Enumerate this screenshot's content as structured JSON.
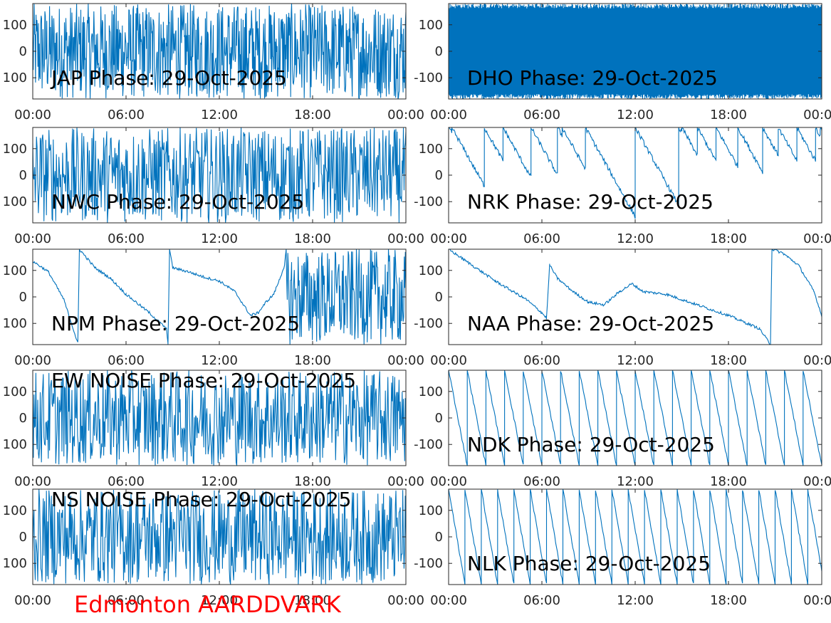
{
  "footer": {
    "text": "Edmonton AARDDVARK",
    "color": "#ff0000"
  },
  "colors": {
    "trace": "#0072bd",
    "axis": "#262626"
  },
  "chart_data": [
    {
      "type": "line",
      "title": "JAP Phase: 29-Oct-2025",
      "pattern": "noisy",
      "n_traces": 200,
      "x_ticks": [
        "00:00",
        "06:00",
        "12:00",
        "18:00",
        "00:00"
      ],
      "y_ticks": [
        "100",
        "0",
        "100"
      ],
      "ylim": [
        -180,
        180
      ],
      "xlim_hours": [
        0,
        24
      ]
    },
    {
      "type": "line",
      "title": "DHO Phase: 29-Oct-2025",
      "pattern": "dense",
      "n_traces": 260,
      "x_ticks": [
        "00:00",
        "06:00",
        "12:00",
        "18:00",
        "00:00"
      ],
      "y_ticks": [
        "100",
        "0",
        "-100"
      ],
      "ylim": [
        -180,
        180
      ],
      "xlim_hours": [
        0,
        24
      ]
    },
    {
      "type": "line",
      "title": "NWC Phase: 29-Oct-2025",
      "pattern": "noisy",
      "n_traces": 150,
      "x_ticks": [
        "00:00",
        "06:00",
        "12:00",
        "18:00",
        "00:00"
      ],
      "y_ticks": [
        "100",
        "0",
        "100"
      ],
      "ylim": [
        -180,
        180
      ],
      "xlim_hours": [
        0,
        24
      ]
    },
    {
      "type": "line",
      "title": "NRK Phase: 29-Oct-2025",
      "pattern": "drift",
      "x_ticks": [
        "00:00",
        "06:00",
        "12:00",
        "18:00",
        "00:00"
      ],
      "y_ticks": [
        "100",
        "0",
        "-100"
      ],
      "ylim": [
        -180,
        180
      ],
      "xlim_hours": [
        0,
        24
      ],
      "wraps_hours": [
        0.2,
        2.3,
        3.5,
        5.3,
        7.0,
        7.3,
        8.8,
        12.0,
        14.8,
        15.0,
        16.0,
        17.2,
        18.6,
        20.2,
        21.2,
        22.4,
        23.6,
        23.9
      ],
      "slope_deg_per_hour": -105
    },
    {
      "type": "line",
      "title": "NPM Phase: 29-Oct-2025",
      "pattern": "mixed",
      "x_ticks": [
        "00:00",
        "06:00",
        "12:00",
        "18:00",
        "00:00"
      ],
      "y_ticks": [
        "100",
        "0",
        "100"
      ],
      "ylim": [
        -180,
        180
      ],
      "xlim_hours": [
        0,
        24
      ],
      "points": [
        [
          0,
          135
        ],
        [
          1,
          95
        ],
        [
          2,
          -10
        ],
        [
          2.9,
          -175
        ],
        [
          3.0,
          180
        ],
        [
          4.0,
          110
        ],
        [
          5.0,
          70
        ],
        [
          6.0,
          10
        ],
        [
          7.5,
          -60
        ],
        [
          8.6,
          -120
        ],
        [
          8.7,
          -180
        ],
        [
          8.8,
          180
        ],
        [
          9.0,
          110
        ],
        [
          10.0,
          95
        ],
        [
          11.0,
          75
        ],
        [
          12.0,
          60
        ],
        [
          13.0,
          20
        ],
        [
          14.0,
          -70
        ],
        [
          14.5,
          -60
        ],
        [
          15.0,
          -20
        ],
        [
          15.5,
          10
        ],
        [
          15.9,
          70
        ],
        [
          16.2,
          120
        ],
        [
          16.3,
          180
        ]
      ],
      "noise_after_hours": 16.3
    },
    {
      "type": "line",
      "title": "NAA Phase: 29-Oct-2025",
      "pattern": "smooth",
      "x_ticks": [
        "00:00",
        "06:00",
        "12:00",
        "18:00",
        "00:00"
      ],
      "y_ticks": [
        "100",
        "0",
        "-100"
      ],
      "ylim": [
        -180,
        180
      ],
      "xlim_hours": [
        0,
        24
      ],
      "points": [
        [
          0,
          180
        ],
        [
          1,
          140
        ],
        [
          3,
          60
        ],
        [
          5,
          -10
        ],
        [
          6.0,
          -60
        ],
        [
          6.3,
          -80
        ],
        [
          6.5,
          120
        ],
        [
          7.0,
          70
        ],
        [
          8.0,
          20
        ],
        [
          9.0,
          -20
        ],
        [
          10,
          -30
        ],
        [
          11.0,
          20
        ],
        [
          11.8,
          50
        ],
        [
          12.5,
          20
        ],
        [
          14,
          10
        ],
        [
          16,
          -30
        ],
        [
          18,
          -70
        ],
        [
          20,
          -120
        ],
        [
          20.7,
          -180
        ],
        [
          20.8,
          180
        ],
        [
          21.5,
          165
        ],
        [
          22.5,
          120
        ],
        [
          23.5,
          20
        ],
        [
          24,
          -70
        ]
      ]
    },
    {
      "type": "line",
      "title": "EW NOISE Phase: 29-Oct-2025",
      "pattern": "noisy",
      "n_traces": 150,
      "x_ticks": [
        "00:00",
        "06:00",
        "12:00",
        "18:00",
        "00:00"
      ],
      "y_ticks": [
        "100",
        "0",
        "100"
      ],
      "ylim": [
        -180,
        180
      ],
      "xlim_hours": [
        0,
        24
      ]
    },
    {
      "type": "line",
      "title": "NDK Phase: 29-Oct-2025",
      "pattern": "sawtooth",
      "x_ticks": [
        "00:00",
        "06:00",
        "12:00",
        "18:00",
        "00:00"
      ],
      "y_ticks": [
        "100",
        "0",
        "-100"
      ],
      "ylim": [
        -180,
        180
      ],
      "xlim_hours": [
        0,
        24
      ],
      "period_hours": 1.2
    },
    {
      "type": "line",
      "title": "NS NOISE Phase: 29-Oct-2025",
      "pattern": "noisy",
      "n_traces": 150,
      "x_ticks": [
        "00:00",
        "06:00",
        "12:00",
        "18:00",
        "00:00"
      ],
      "y_ticks": [
        "100",
        "0",
        "100"
      ],
      "ylim": [
        -180,
        180
      ],
      "xlim_hours": [
        0,
        24
      ]
    },
    {
      "type": "line",
      "title": "NLK Phase: 29-Oct-2025",
      "pattern": "sawtooth",
      "x_ticks": [
        "00:00",
        "06:00",
        "12:00",
        "18:00",
        "00:00"
      ],
      "y_ticks": [
        "100",
        "0",
        "-100"
      ],
      "ylim": [
        -180,
        180
      ],
      "xlim_hours": [
        0,
        24
      ],
      "period_hours": 1.05
    }
  ]
}
